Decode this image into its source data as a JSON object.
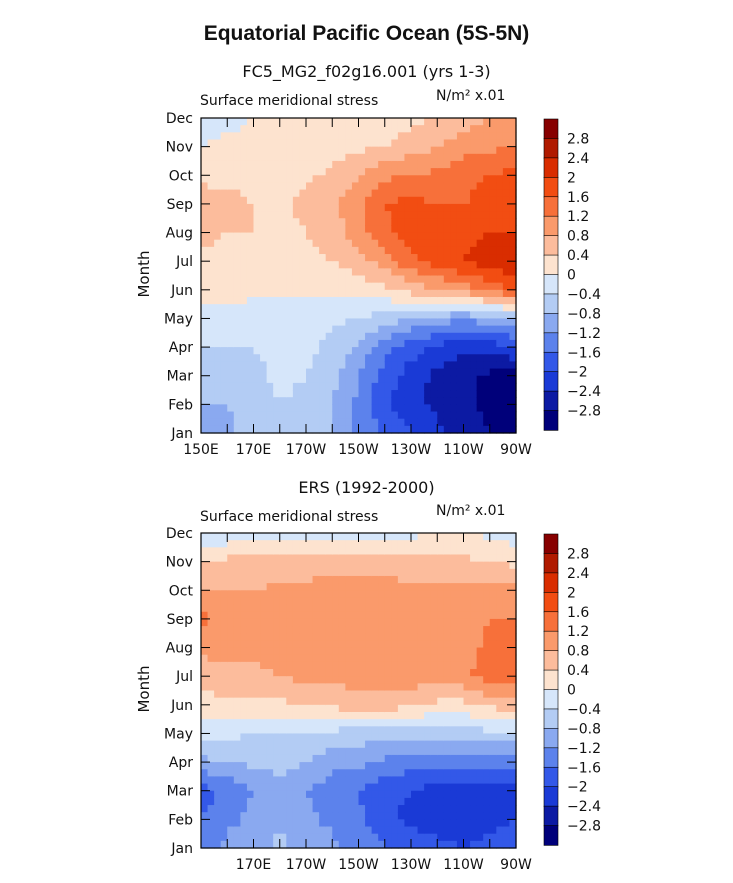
{
  "title": "Equatorial Pacific Ocean (5S-5N)",
  "panels": [
    {
      "subtitle": "FC5_MG2_f02g16.001 (yrs 1-3)",
      "variable": "Surface meridional stress",
      "units": "N/m² x.01",
      "ylabel": "Month"
    },
    {
      "subtitle": "ERS (1992-2000)",
      "variable": "Surface meridional stress",
      "units": "N/m² x.01",
      "ylabel": "Month"
    }
  ],
  "chart_data": [
    {
      "type": "heatmap",
      "title": "FC5_MG2_f02g16.001 (yrs 1-3)",
      "subtitle": "Surface meridional stress",
      "units": "N/m² x.01",
      "xlabel": "",
      "ylabel": "Month",
      "x_ticks": [
        "150E",
        "170E",
        "170W",
        "150W",
        "130W",
        "110W",
        "90W"
      ],
      "y_ticks": [
        "Jan",
        "Feb",
        "Mar",
        "Apr",
        "May",
        "Jun",
        "Jul",
        "Aug",
        "Sep",
        "Oct",
        "Nov",
        "Dec"
      ],
      "xlim": [
        150,
        270
      ],
      "x_grid": [
        150,
        160,
        170,
        180,
        190,
        200,
        210,
        220,
        230,
        240,
        250,
        260,
        270
      ],
      "contour_levels": [
        -2.8,
        -2.4,
        -2.0,
        -1.6,
        -1.2,
        -0.8,
        -0.4,
        0,
        0.4,
        0.8,
        1.2,
        1.6,
        2.0,
        2.4,
        2.8
      ],
      "values": [
        [
          -1.0,
          -0.9,
          -0.6,
          -0.4,
          -0.6,
          -0.8,
          -1.3,
          -1.7,
          -2.0,
          -2.3,
          -2.6,
          -2.8,
          -2.9
        ],
        [
          -0.8,
          -0.8,
          -0.6,
          -0.4,
          -0.5,
          -0.8,
          -1.3,
          -1.9,
          -2.3,
          -2.5,
          -2.7,
          -2.9,
          -3.0
        ],
        [
          -0.6,
          -0.6,
          -0.5,
          -0.3,
          -0.4,
          -0.7,
          -1.2,
          -1.8,
          -2.2,
          -2.5,
          -2.7,
          -2.9,
          -3.0
        ],
        [
          -0.4,
          -0.4,
          -0.4,
          -0.3,
          -0.3,
          -0.5,
          -0.9,
          -1.4,
          -1.8,
          -2.1,
          -2.3,
          -2.2,
          -2.0
        ],
        [
          -0.2,
          -0.2,
          -0.2,
          -0.2,
          -0.2,
          -0.3,
          -0.4,
          -0.6,
          -0.8,
          -1.0,
          -1.1,
          -1.0,
          -0.8
        ],
        [
          0.2,
          0.2,
          0.1,
          0.1,
          0.1,
          0.1,
          0.2,
          0.3,
          0.6,
          0.8,
          1.0,
          1.4,
          1.6
        ],
        [
          0.3,
          0.3,
          0.2,
          0.2,
          0.3,
          0.4,
          0.6,
          1.0,
          1.5,
          1.8,
          2.0,
          2.2,
          2.4
        ],
        [
          0.5,
          0.4,
          0.4,
          0.3,
          0.4,
          0.6,
          1.0,
          1.5,
          1.8,
          1.9,
          1.9,
          2.0,
          2.0
        ],
        [
          0.6,
          0.5,
          0.4,
          0.3,
          0.5,
          0.7,
          1.1,
          1.6,
          1.7,
          1.6,
          1.6,
          1.7,
          1.8
        ],
        [
          0.3,
          0.3,
          0.3,
          0.3,
          0.3,
          0.5,
          0.8,
          1.1,
          1.2,
          1.3,
          1.5,
          1.6,
          1.7
        ],
        [
          0.0,
          0.1,
          0.1,
          0.1,
          0.1,
          0.2,
          0.3,
          0.4,
          0.6,
          0.8,
          1.0,
          1.1,
          1.2
        ],
        [
          -0.2,
          -0.1,
          0.0,
          0.1,
          0.1,
          0.1,
          0.1,
          0.2,
          0.3,
          0.4,
          0.6,
          0.8,
          0.9
        ]
      ]
    },
    {
      "type": "heatmap",
      "title": "ERS (1992-2000)",
      "subtitle": "Surface meridional stress",
      "units": "N/m² x.01",
      "xlabel": "",
      "ylabel": "Month",
      "x_ticks": [
        "170E",
        "170W",
        "150W",
        "130W",
        "110W",
        "90W"
      ],
      "y_ticks": [
        "Jan",
        "Feb",
        "Mar",
        "Apr",
        "May",
        "Jun",
        "Jul",
        "Aug",
        "Sep",
        "Oct",
        "Nov",
        "Dec"
      ],
      "xlim": [
        150,
        270
      ],
      "x_grid": [
        150,
        160,
        170,
        180,
        190,
        200,
        210,
        220,
        230,
        240,
        250,
        260,
        270
      ],
      "contour_levels": [
        -2.8,
        -2.4,
        -2.0,
        -1.6,
        -1.2,
        -0.8,
        -0.4,
        0,
        0.4,
        0.8,
        1.2,
        1.6,
        2.0,
        2.4,
        2.8
      ],
      "values": [
        [
          -1.3,
          -1.1,
          -0.9,
          -0.7,
          -0.9,
          -1.1,
          -1.3,
          -1.6,
          -1.8,
          -1.9,
          -2.0,
          -1.9,
          -1.8
        ],
        [
          -1.6,
          -1.3,
          -1.1,
          -0.9,
          -1.1,
          -1.3,
          -1.5,
          -1.9,
          -2.1,
          -2.2,
          -2.2,
          -2.1,
          -2.0
        ],
        [
          -1.8,
          -1.5,
          -1.2,
          -1.0,
          -1.2,
          -1.4,
          -1.6,
          -1.9,
          -2.0,
          -2.2,
          -2.3,
          -2.3,
          -2.1
        ],
        [
          -0.9,
          -0.8,
          -0.7,
          -0.6,
          -0.8,
          -1.1,
          -1.1,
          -1.3,
          -1.4,
          -1.5,
          -1.5,
          -1.4,
          -1.3
        ],
        [
          -0.3,
          -0.3,
          -0.4,
          -0.4,
          -0.4,
          -0.5,
          -0.6,
          -0.6,
          -0.7,
          -0.6,
          -0.6,
          -0.5,
          -0.5
        ],
        [
          0.2,
          0.3,
          0.3,
          0.3,
          0.4,
          0.5,
          0.6,
          0.6,
          0.5,
          0.3,
          0.3,
          0.5,
          0.6
        ],
        [
          0.6,
          0.7,
          0.7,
          0.8,
          0.9,
          0.9,
          1.0,
          1.0,
          1.0,
          1.0,
          1.1,
          1.4,
          1.5
        ],
        [
          0.9,
          0.9,
          0.9,
          1.0,
          1.0,
          1.1,
          1.0,
          1.1,
          1.1,
          1.0,
          1.0,
          1.3,
          1.4
        ],
        [
          1.3,
          1.1,
          1.0,
          1.0,
          1.1,
          1.1,
          1.0,
          1.1,
          1.1,
          1.0,
          1.0,
          1.2,
          1.2
        ],
        [
          0.8,
          0.8,
          0.8,
          0.9,
          0.9,
          1.0,
          1.0,
          1.0,
          0.9,
          0.9,
          0.9,
          1.0,
          1.0
        ],
        [
          0.4,
          0.5,
          0.5,
          0.5,
          0.6,
          0.6,
          0.6,
          0.6,
          0.5,
          0.5,
          0.5,
          0.4,
          0.3
        ],
        [
          -0.3,
          -0.3,
          -0.2,
          -0.1,
          -0.2,
          -0.3,
          -0.2,
          -0.1,
          -0.1,
          0.0,
          0.0,
          -0.1,
          -0.2
        ]
      ]
    }
  ],
  "colorbar": {
    "labels": [
      "2.8",
      "2.4",
      "2",
      "1.6",
      "1.2",
      "0.8",
      "0.4",
      "0",
      "−0.4",
      "−0.8",
      "−1.2",
      "−1.6",
      "−2",
      "−2.4",
      "−2.8"
    ],
    "colors_top_to_bottom": [
      "#870000",
      "#b01a00",
      "#d92d00",
      "#f24d12",
      "#f7703a",
      "#fa9a6b",
      "#fcbc9c",
      "#fde3cf",
      "#d6e6fa",
      "#b3ccf4",
      "#8aa9f0",
      "#5c82ec",
      "#3358e8",
      "#1a3ad6",
      "#0c1aa3",
      "#00007a"
    ]
  }
}
